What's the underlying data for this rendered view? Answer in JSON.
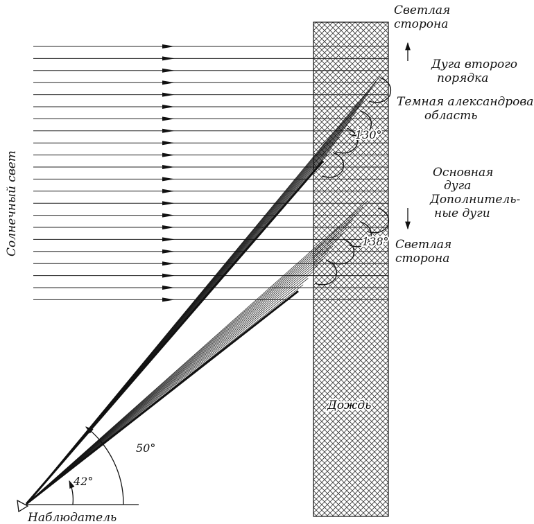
{
  "labels": {
    "light_side_top": [
      "Светлая",
      "сторона"
    ],
    "secondary_arc": [
      "Дуга второго",
      "порядка"
    ],
    "dark_band": [
      "Темная александрова",
      "область"
    ],
    "primary_arc": [
      "Основная",
      "дуга"
    ],
    "supernumerary": [
      "Дополнитель-",
      "ные дуги"
    ],
    "light_side_bottom": [
      "Светлая",
      "сторона"
    ],
    "rain": "Дождь",
    "sunlight": "Солнечный свет",
    "observer": "Наблюдатель",
    "angle_primary": "42°",
    "angle_secondary": "50°",
    "deflection_secondary": "130°",
    "deflection_primary": "138°"
  }
}
